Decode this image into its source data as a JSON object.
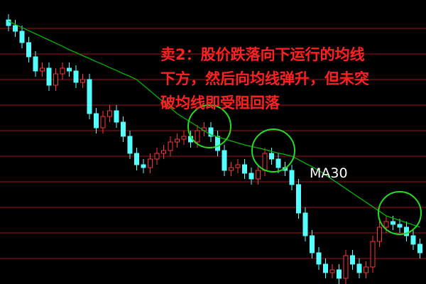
{
  "chart_data": {
    "type": "candlestick",
    "ylim": [
      0,
      100
    ],
    "up_color": "#ff3232",
    "down_color": "#54ffff",
    "open": [
      93,
      91,
      89,
      85,
      80,
      75,
      76,
      70,
      74,
      76,
      75,
      71,
      72,
      60,
      55,
      59,
      61,
      57,
      52,
      46,
      42,
      41,
      44,
      46,
      47,
      50,
      51,
      52,
      50,
      54,
      55,
      52,
      47,
      40,
      41,
      42,
      39,
      37,
      40,
      46,
      44,
      41,
      40,
      35,
      25,
      17,
      11,
      7,
      4,
      5,
      2,
      10,
      7,
      4,
      6,
      15,
      20,
      22,
      21,
      20,
      17,
      14
    ],
    "high": [
      95,
      93,
      91,
      87,
      82,
      78,
      78,
      76,
      78,
      78,
      77,
      74,
      74,
      62,
      61,
      63,
      63,
      59,
      54,
      48,
      44,
      46,
      48,
      49,
      52,
      53,
      54,
      54,
      56,
      57,
      57,
      54,
      49,
      43,
      44,
      44,
      41,
      42,
      48,
      48,
      46,
      43,
      42,
      37,
      27,
      19,
      13,
      9,
      7,
      7,
      12,
      12,
      9,
      8,
      17,
      22,
      24,
      24,
      23,
      22,
      19,
      16
    ],
    "low": [
      89,
      87,
      83,
      78,
      73,
      73,
      68,
      68,
      72,
      73,
      69,
      69,
      58,
      53,
      53,
      57,
      55,
      50,
      44,
      40,
      39,
      39,
      42,
      44,
      45,
      48,
      49,
      48,
      48,
      52,
      50,
      45,
      38,
      38,
      39,
      37,
      35,
      35,
      38,
      42,
      39,
      38,
      33,
      23,
      15,
      9,
      5,
      2,
      2,
      0,
      0,
      5,
      2,
      2,
      4,
      13,
      18,
      19,
      18,
      15,
      12,
      9
    ],
    "close": [
      91,
      89,
      85,
      80,
      75,
      76,
      70,
      74,
      76,
      75,
      71,
      72,
      60,
      55,
      59,
      61,
      57,
      52,
      46,
      42,
      41,
      44,
      46,
      47,
      50,
      51,
      52,
      50,
      54,
      55,
      52,
      47,
      40,
      41,
      42,
      39,
      37,
      40,
      46,
      44,
      41,
      40,
      35,
      25,
      17,
      11,
      7,
      4,
      5,
      2,
      10,
      7,
      4,
      6,
      15,
      20,
      22,
      21,
      20,
      17,
      14,
      11
    ],
    "series": [
      {
        "name": "MA30",
        "color": "#00b400",
        "values": [
          92.5,
          91.4,
          90.3,
          89.2,
          88.1,
          87,
          85.9,
          84.8,
          83.7,
          82.5,
          81.5,
          80.4,
          79.4,
          78.3,
          77.3,
          76.2,
          75.2,
          74.1,
          73.1,
          72,
          70,
          68,
          66,
          64,
          62,
          60,
          58.5,
          57,
          55.5,
          54,
          52.5,
          51.8,
          51.1,
          50.4,
          49.7,
          49,
          48.4,
          47.9,
          47.3,
          46.7,
          46.1,
          45.6,
          45,
          43.8,
          42.5,
          41.3,
          40,
          38.4,
          36.8,
          35.2,
          33.6,
          32,
          30.4,
          28.8,
          27.2,
          25.6,
          24,
          23.2,
          22.4,
          21.6,
          20.8,
          20
        ]
      }
    ],
    "annotation": [
      "卖2：股价跌落向下运行的均线",
      "下方，然后向均线弹升，但未突",
      "破均线即受阻回落"
    ]
  }
}
